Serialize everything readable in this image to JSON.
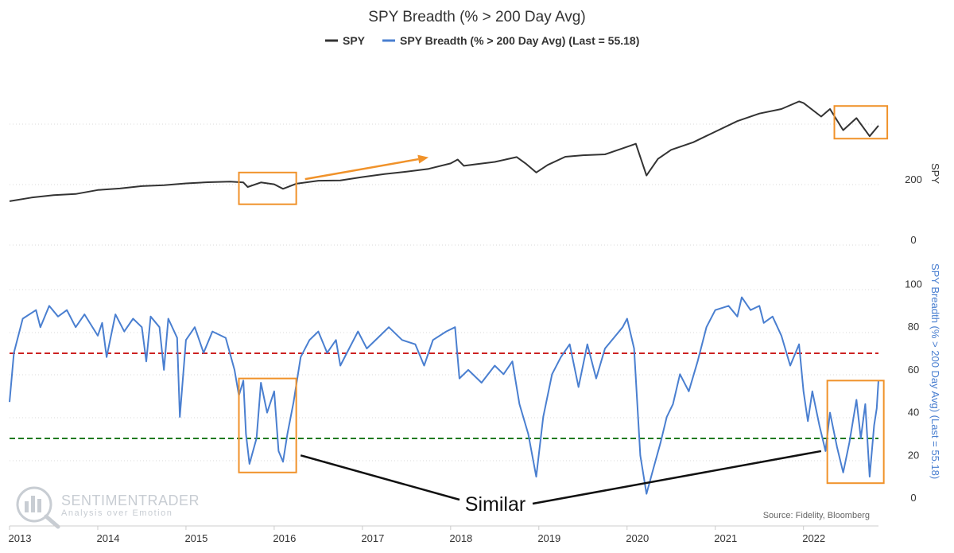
{
  "chart_data": {
    "type": "line",
    "title": "SPY Breadth (% > 200 Day Avg)",
    "legend": {
      "placement": "top-center"
    },
    "x_axis": {
      "ticks": [
        "2013",
        "2014",
        "2015",
        "2016",
        "2017",
        "2018",
        "2019",
        "2020",
        "2021",
        "2022"
      ],
      "range": [
        2013.0,
        2022.85
      ]
    },
    "panels": [
      {
        "name": "price",
        "axis_label": "SPY",
        "axis_side": "right",
        "ticks": [
          "200",
          "0"
        ],
        "ylim": [
          0,
          500
        ],
        "series": [
          {
            "name": "SPY",
            "color": "#333333",
            "points": [
              [
                2013.0,
                145
              ],
              [
                2013.25,
                157
              ],
              [
                2013.5,
                165
              ],
              [
                2013.75,
                169
              ],
              [
                2014.0,
                182
              ],
              [
                2014.25,
                187
              ],
              [
                2014.5,
                195
              ],
              [
                2014.75,
                198
              ],
              [
                2015.0,
                204
              ],
              [
                2015.25,
                208
              ],
              [
                2015.5,
                210
              ],
              [
                2015.65,
                207
              ],
              [
                2015.7,
                192
              ],
              [
                2015.85,
                207
              ],
              [
                2016.0,
                201
              ],
              [
                2016.1,
                186
              ],
              [
                2016.25,
                203
              ],
              [
                2016.5,
                213
              ],
              [
                2016.75,
                214
              ],
              [
                2017.0,
                225
              ],
              [
                2017.25,
                235
              ],
              [
                2017.5,
                243
              ],
              [
                2017.75,
                252
              ],
              [
                2018.0,
                270
              ],
              [
                2018.08,
                283
              ],
              [
                2018.15,
                262
              ],
              [
                2018.3,
                268
              ],
              [
                2018.5,
                275
              ],
              [
                2018.75,
                291
              ],
              [
                2018.85,
                270
              ],
              [
                2018.97,
                240
              ],
              [
                2019.1,
                265
              ],
              [
                2019.3,
                292
              ],
              [
                2019.5,
                297
              ],
              [
                2019.75,
                300
              ],
              [
                2019.95,
                320
              ],
              [
                2020.1,
                335
              ],
              [
                2020.22,
                230
              ],
              [
                2020.35,
                285
              ],
              [
                2020.5,
                315
              ],
              [
                2020.75,
                340
              ],
              [
                2021.0,
                375
              ],
              [
                2021.25,
                410
              ],
              [
                2021.5,
                435
              ],
              [
                2021.75,
                450
              ],
              [
                2021.95,
                475
              ],
              [
                2022.0,
                470
              ],
              [
                2022.2,
                425
              ],
              [
                2022.3,
                450
              ],
              [
                2022.45,
                380
              ],
              [
                2022.6,
                420
              ],
              [
                2022.75,
                360
              ],
              [
                2022.85,
                395
              ]
            ]
          }
        ]
      },
      {
        "name": "breadth",
        "axis_label": "SPY Breadth (% > 200 Day Avg) (Last = 55.18)",
        "axis_side": "right",
        "ticks": [
          "100",
          "80",
          "60",
          "40",
          "20",
          "0"
        ],
        "ylim": [
          0,
          100
        ],
        "series": [
          {
            "name": "SPY Breadth (% > 200 Day Avg) (Last = 55.18)",
            "color": "#4a7fd0",
            "points": [
              [
                2013.0,
                45
              ],
              [
                2013.05,
                68
              ],
              [
                2013.15,
                84
              ],
              [
                2013.3,
                88
              ],
              [
                2013.35,
                80
              ],
              [
                2013.45,
                90
              ],
              [
                2013.55,
                85
              ],
              [
                2013.65,
                88
              ],
              [
                2013.75,
                80
              ],
              [
                2013.85,
                86
              ],
              [
                2014.0,
                76
              ],
              [
                2014.05,
                82
              ],
              [
                2014.1,
                66
              ],
              [
                2014.2,
                86
              ],
              [
                2014.3,
                78
              ],
              [
                2014.4,
                84
              ],
              [
                2014.5,
                80
              ],
              [
                2014.55,
                64
              ],
              [
                2014.6,
                85
              ],
              [
                2014.7,
                80
              ],
              [
                2014.75,
                60
              ],
              [
                2014.8,
                84
              ],
              [
                2014.9,
                75
              ],
              [
                2014.93,
                38
              ],
              [
                2015.0,
                74
              ],
              [
                2015.1,
                80
              ],
              [
                2015.2,
                68
              ],
              [
                2015.3,
                78
              ],
              [
                2015.45,
                75
              ],
              [
                2015.55,
                60
              ],
              [
                2015.6,
                48
              ],
              [
                2015.65,
                55
              ],
              [
                2015.68,
                30
              ],
              [
                2015.72,
                16
              ],
              [
                2015.8,
                28
              ],
              [
                2015.85,
                54
              ],
              [
                2015.92,
                40
              ],
              [
                2016.0,
                50
              ],
              [
                2016.05,
                22
              ],
              [
                2016.1,
                17
              ],
              [
                2016.15,
                30
              ],
              [
                2016.22,
                45
              ],
              [
                2016.3,
                66
              ],
              [
                2016.4,
                74
              ],
              [
                2016.5,
                78
              ],
              [
                2016.6,
                68
              ],
              [
                2016.7,
                74
              ],
              [
                2016.75,
                62
              ],
              [
                2016.85,
                70
              ],
              [
                2016.95,
                78
              ],
              [
                2017.05,
                70
              ],
              [
                2017.2,
                76
              ],
              [
                2017.3,
                80
              ],
              [
                2017.45,
                74
              ],
              [
                2017.6,
                72
              ],
              [
                2017.7,
                62
              ],
              [
                2017.8,
                74
              ],
              [
                2017.95,
                78
              ],
              [
                2018.05,
                80
              ],
              [
                2018.1,
                56
              ],
              [
                2018.2,
                60
              ],
              [
                2018.35,
                54
              ],
              [
                2018.5,
                62
              ],
              [
                2018.6,
                58
              ],
              [
                2018.7,
                64
              ],
              [
                2018.78,
                44
              ],
              [
                2018.88,
                30
              ],
              [
                2018.97,
                10
              ],
              [
                2019.05,
                38
              ],
              [
                2019.15,
                58
              ],
              [
                2019.25,
                66
              ],
              [
                2019.35,
                72
              ],
              [
                2019.45,
                52
              ],
              [
                2019.55,
                72
              ],
              [
                2019.65,
                56
              ],
              [
                2019.75,
                70
              ],
              [
                2019.85,
                75
              ],
              [
                2019.95,
                80
              ],
              [
                2020.0,
                84
              ],
              [
                2020.08,
                70
              ],
              [
                2020.15,
                20
              ],
              [
                2020.22,
                2
              ],
              [
                2020.3,
                14
              ],
              [
                2020.38,
                26
              ],
              [
                2020.45,
                38
              ],
              [
                2020.52,
                44
              ],
              [
                2020.6,
                58
              ],
              [
                2020.7,
                50
              ],
              [
                2020.8,
                64
              ],
              [
                2020.9,
                80
              ],
              [
                2021.0,
                88
              ],
              [
                2021.15,
                90
              ],
              [
                2021.25,
                85
              ],
              [
                2021.3,
                94
              ],
              [
                2021.4,
                88
              ],
              [
                2021.5,
                90
              ],
              [
                2021.55,
                82
              ],
              [
                2021.65,
                85
              ],
              [
                2021.75,
                76
              ],
              [
                2021.85,
                62
              ],
              [
                2021.95,
                72
              ],
              [
                2022.0,
                50
              ],
              [
                2022.05,
                36
              ],
              [
                2022.1,
                50
              ],
              [
                2022.18,
                34
              ],
              [
                2022.25,
                22
              ],
              [
                2022.3,
                40
              ],
              [
                2022.38,
                24
              ],
              [
                2022.45,
                12
              ],
              [
                2022.52,
                26
              ],
              [
                2022.6,
                46
              ],
              [
                2022.65,
                28
              ],
              [
                2022.7,
                44
              ],
              [
                2022.75,
                10
              ],
              [
                2022.8,
                34
              ],
              [
                2022.83,
                42
              ],
              [
                2022.85,
                55.18
              ]
            ]
          }
        ],
        "reference_lines": [
          {
            "y": 68,
            "color": "#cc2222",
            "style": "dashed"
          },
          {
            "y": 28,
            "color": "#1f7a1f",
            "style": "dashed"
          }
        ]
      }
    ],
    "annotations": {
      "text": "Similar",
      "source": "Source: Fidelity, Bloomberg",
      "watermark_title": "SENTIMENTRADER",
      "watermark_tagline": "Analysis over Emotion",
      "box_color": "#f0922a",
      "arrow_color": "#f0922a",
      "price_boxes": [
        {
          "x": [
            2015.6,
            2016.25
          ],
          "y": [
            135,
            240
          ]
        },
        {
          "x": [
            2022.35,
            2022.95
          ],
          "y": [
            352,
            460
          ]
        }
      ],
      "breadth_boxes": [
        {
          "x": [
            2015.6,
            2016.25
          ],
          "y": [
            12,
            56
          ]
        },
        {
          "x": [
            2022.27,
            2022.91
          ],
          "y": [
            7,
            55
          ]
        }
      ],
      "arrow": {
        "from": [
          2016.35,
          218
        ],
        "to": [
          2017.75,
          290
        ]
      },
      "connectors": [
        {
          "from": [
            2016.3,
            20
          ],
          "to": "label"
        },
        {
          "from": [
            2022.2,
            22
          ],
          "to": "label"
        }
      ]
    }
  }
}
